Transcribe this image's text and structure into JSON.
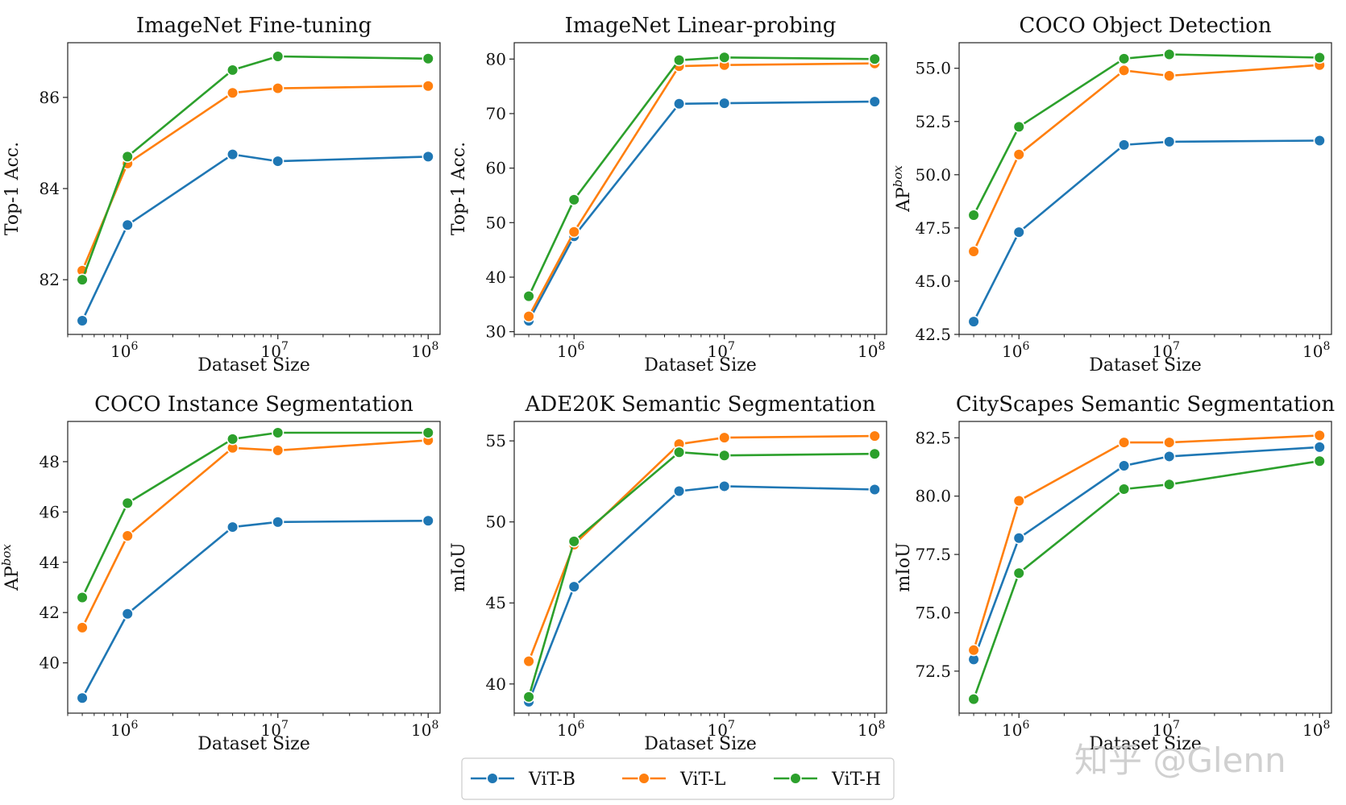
{
  "chart_data": [
    {
      "type": "line",
      "title": "ImageNet Fine-tuning",
      "xlabel": "Dataset Size",
      "ylabel": "Top-1 Acc.",
      "xscale": "log",
      "x": [
        500000,
        1000000,
        5000000,
        10000000,
        100000000
      ],
      "x_ticks": [
        1000000,
        10000000,
        100000000
      ],
      "x_tick_labels": [
        {
          "base": "10",
          "exp": "6"
        },
        {
          "base": "10",
          "exp": "7"
        },
        {
          "base": "10",
          "exp": "8"
        }
      ],
      "ylim": [
        80.8,
        87.2
      ],
      "y_ticks": [
        82,
        84,
        86
      ],
      "y_tick_labels": [
        "82",
        "84",
        "86"
      ],
      "series": [
        {
          "name": "ViT-B",
          "color": "#1f77b4",
          "values": [
            81.1,
            83.2,
            84.75,
            84.6,
            84.7
          ]
        },
        {
          "name": "ViT-L",
          "color": "#ff7f0e",
          "values": [
            82.2,
            84.55,
            86.1,
            86.2,
            86.25
          ]
        },
        {
          "name": "ViT-H",
          "color": "#2ca02c",
          "values": [
            82.0,
            84.7,
            86.6,
            86.9,
            86.85
          ]
        }
      ]
    },
    {
      "type": "line",
      "title": "ImageNet Linear-probing",
      "xlabel": "Dataset Size",
      "ylabel": "Top-1 Acc.",
      "xscale": "log",
      "x": [
        500000,
        1000000,
        5000000,
        10000000,
        100000000
      ],
      "x_ticks": [
        1000000,
        10000000,
        100000000
      ],
      "x_tick_labels": [
        {
          "base": "10",
          "exp": "6"
        },
        {
          "base": "10",
          "exp": "7"
        },
        {
          "base": "10",
          "exp": "8"
        }
      ],
      "ylim": [
        29.5,
        83
      ],
      "y_ticks": [
        30,
        40,
        50,
        60,
        70,
        80
      ],
      "y_tick_labels": [
        "30",
        "40",
        "50",
        "60",
        "70",
        "80"
      ],
      "series": [
        {
          "name": "ViT-B",
          "color": "#1f77b4",
          "values": [
            32.0,
            47.5,
            71.8,
            71.9,
            72.2
          ]
        },
        {
          "name": "ViT-L",
          "color": "#ff7f0e",
          "values": [
            32.8,
            48.3,
            78.7,
            78.9,
            79.2
          ]
        },
        {
          "name": "ViT-H",
          "color": "#2ca02c",
          "values": [
            36.5,
            54.2,
            79.8,
            80.3,
            80.0
          ]
        }
      ]
    },
    {
      "type": "line",
      "title": "COCO Object Detection",
      "xlabel": "Dataset Size",
      "ylabel": "AP",
      "ylabel_sup": "box",
      "xscale": "log",
      "x": [
        500000,
        1000000,
        5000000,
        10000000,
        100000000
      ],
      "x_ticks": [
        1000000,
        10000000,
        100000000
      ],
      "x_tick_labels": [
        {
          "base": "10",
          "exp": "6"
        },
        {
          "base": "10",
          "exp": "7"
        },
        {
          "base": "10",
          "exp": "8"
        }
      ],
      "ylim": [
        42.5,
        56.2
      ],
      "y_ticks": [
        42.5,
        45.0,
        47.5,
        50.0,
        52.5,
        55.0
      ],
      "y_tick_labels": [
        "42.5",
        "45.0",
        "47.5",
        "50.0",
        "52.5",
        "55.0"
      ],
      "series": [
        {
          "name": "ViT-B",
          "color": "#1f77b4",
          "values": [
            43.1,
            47.3,
            51.4,
            51.55,
            51.6
          ]
        },
        {
          "name": "ViT-L",
          "color": "#ff7f0e",
          "values": [
            46.4,
            50.95,
            54.9,
            54.65,
            55.15
          ]
        },
        {
          "name": "ViT-H",
          "color": "#2ca02c",
          "values": [
            48.1,
            52.25,
            55.45,
            55.65,
            55.5
          ]
        }
      ]
    },
    {
      "type": "line",
      "title": "COCO Instance Segmentation",
      "xlabel": "Dataset Size",
      "ylabel": "AP",
      "ylabel_sup": "box",
      "xscale": "log",
      "x": [
        500000,
        1000000,
        5000000,
        10000000,
        100000000
      ],
      "x_ticks": [
        1000000,
        10000000,
        100000000
      ],
      "x_tick_labels": [
        {
          "base": "10",
          "exp": "6"
        },
        {
          "base": "10",
          "exp": "7"
        },
        {
          "base": "10",
          "exp": "8"
        }
      ],
      "ylim": [
        38.0,
        49.6
      ],
      "y_ticks": [
        40,
        42,
        44,
        46,
        48
      ],
      "y_tick_labels": [
        "40",
        "42",
        "44",
        "46",
        "48"
      ],
      "series": [
        {
          "name": "ViT-B",
          "color": "#1f77b4",
          "values": [
            38.6,
            41.95,
            45.4,
            45.6,
            45.65
          ]
        },
        {
          "name": "ViT-L",
          "color": "#ff7f0e",
          "values": [
            41.4,
            45.05,
            48.55,
            48.45,
            48.85
          ]
        },
        {
          "name": "ViT-H",
          "color": "#2ca02c",
          "values": [
            42.6,
            46.35,
            48.9,
            49.15,
            49.15
          ]
        }
      ]
    },
    {
      "type": "line",
      "title": "ADE20K Semantic Segmentation",
      "xlabel": "Dataset Size",
      "ylabel": "mIoU",
      "xscale": "log",
      "x": [
        500000,
        1000000,
        5000000,
        10000000,
        100000000
      ],
      "x_ticks": [
        1000000,
        10000000,
        100000000
      ],
      "x_tick_labels": [
        {
          "base": "10",
          "exp": "6"
        },
        {
          "base": "10",
          "exp": "7"
        },
        {
          "base": "10",
          "exp": "8"
        }
      ],
      "ylim": [
        38.2,
        56.2
      ],
      "y_ticks": [
        40,
        45,
        50,
        55
      ],
      "y_tick_labels": [
        "40",
        "45",
        "50",
        "55"
      ],
      "series": [
        {
          "name": "ViT-B",
          "color": "#1f77b4",
          "values": [
            38.9,
            46.0,
            51.9,
            52.2,
            52.0
          ]
        },
        {
          "name": "ViT-L",
          "color": "#ff7f0e",
          "values": [
            41.4,
            48.6,
            54.8,
            55.2,
            55.3
          ]
        },
        {
          "name": "ViT-H",
          "color": "#2ca02c",
          "values": [
            39.2,
            48.8,
            54.3,
            54.1,
            54.2
          ]
        }
      ]
    },
    {
      "type": "line",
      "title": "CityScapes Semantic Segmentation",
      "xlabel": "Dataset Size",
      "ylabel": "mIoU",
      "xscale": "log",
      "x": [
        500000,
        1000000,
        5000000,
        10000000,
        100000000
      ],
      "x_ticks": [
        1000000,
        10000000,
        100000000
      ],
      "x_tick_labels": [
        {
          "base": "10",
          "exp": "6"
        },
        {
          "base": "10",
          "exp": "7"
        },
        {
          "base": "10",
          "exp": "8"
        }
      ],
      "ylim": [
        70.7,
        83.2
      ],
      "y_ticks": [
        72.5,
        75.0,
        77.5,
        80.0,
        82.5
      ],
      "y_tick_labels": [
        "72.5",
        "75.0",
        "77.5",
        "80.0",
        "82.5"
      ],
      "series": [
        {
          "name": "ViT-B",
          "color": "#1f77b4",
          "values": [
            73.0,
            78.2,
            81.3,
            81.7,
            82.1
          ]
        },
        {
          "name": "ViT-L",
          "color": "#ff7f0e",
          "values": [
            73.4,
            79.8,
            82.3,
            82.3,
            82.6
          ]
        },
        {
          "name": "ViT-H",
          "color": "#2ca02c",
          "values": [
            71.3,
            76.7,
            80.3,
            80.5,
            81.5
          ]
        }
      ]
    }
  ],
  "legend": {
    "placement": "bottom-center",
    "items": [
      {
        "label": "ViT-B",
        "color": "#1f77b4"
      },
      {
        "label": "ViT-L",
        "color": "#ff7f0e"
      },
      {
        "label": "ViT-H",
        "color": "#2ca02c"
      }
    ]
  },
  "watermark": {
    "text": "知乎 @Glenn"
  }
}
